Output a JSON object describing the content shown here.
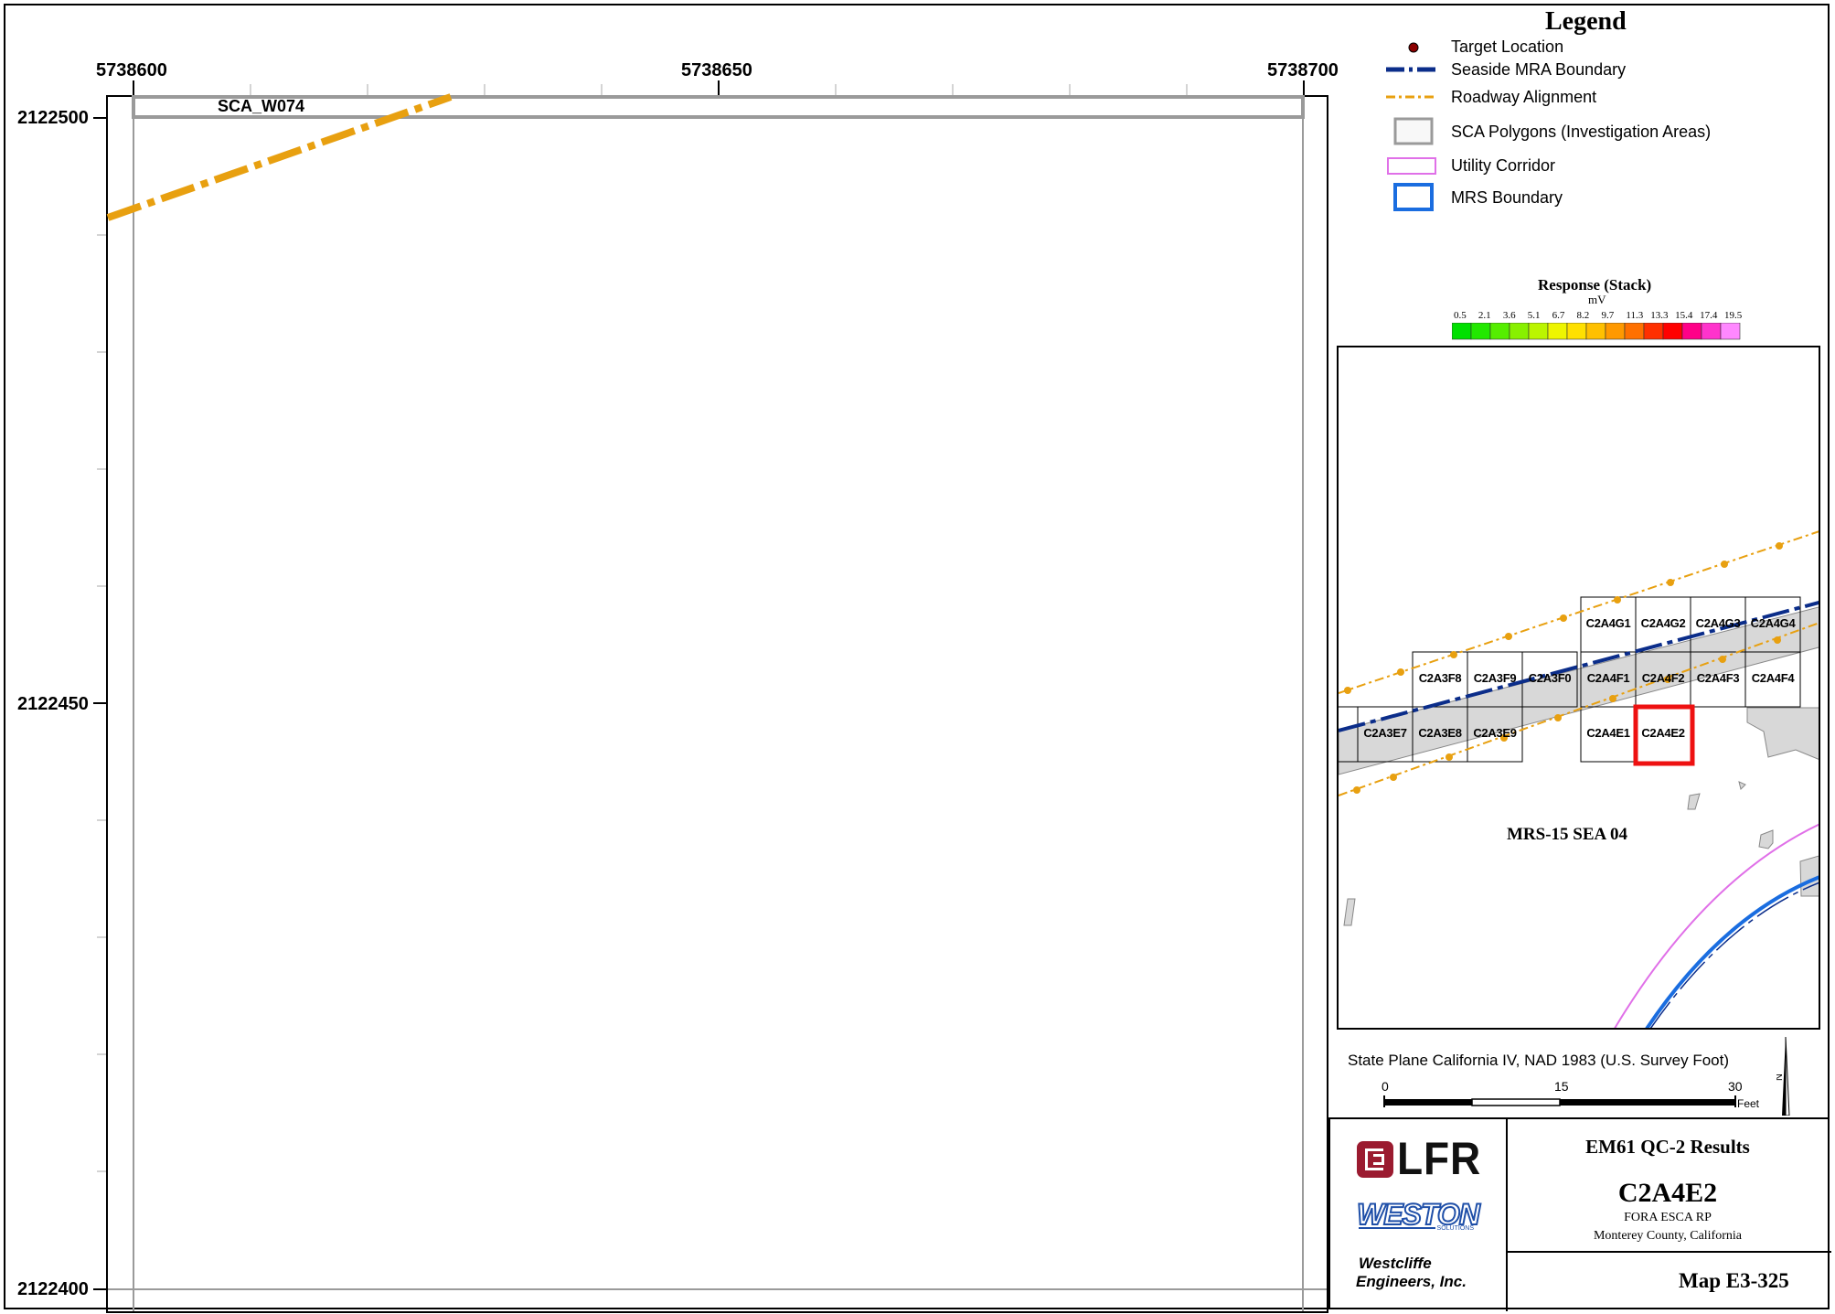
{
  "map": {
    "x_ticks": [
      "5738600",
      "5738650",
      "5738700"
    ],
    "y_ticks": [
      "2122500",
      "2122450",
      "2122400"
    ],
    "sca_label": "SCA_W074"
  },
  "legend": {
    "title": "Legend",
    "items": [
      {
        "label": "Target Location",
        "icon": "target-dot-icon"
      },
      {
        "label": "Seaside MRA Boundary",
        "icon": "dash-dot-line-icon"
      },
      {
        "label": "Roadway Alignment",
        "icon": "orange-dash-line-icon"
      },
      {
        "label": "SCA Polygons (Investigation Areas)",
        "icon": "gray-box-icon"
      },
      {
        "label": "Utility Corridor",
        "icon": "pink-box-icon"
      },
      {
        "label": "MRS Boundary",
        "icon": "blue-box-icon"
      }
    ],
    "response_title": "Response (Stack)",
    "response_unit": "mV",
    "response_ticks": [
      "0.5",
      "2.1",
      "3.6",
      "5.1",
      "6.7",
      "8.2",
      "9.7",
      "11.3",
      "13.3",
      "15.4",
      "17.4",
      "19.5"
    ],
    "response_colors": [
      "#00e000",
      "#22e800",
      "#55ee00",
      "#88f000",
      "#bbf500",
      "#eef500",
      "#ffe000",
      "#ffc000",
      "#ff9900",
      "#ff7000",
      "#ff3000",
      "#ff0000",
      "#ff0088",
      "#ff33cc",
      "#ff88ff"
    ]
  },
  "inset": {
    "grid_labels": [
      "C2A4G1",
      "C2A4G2",
      "C2A4G3",
      "C2A4G4",
      "C2A3F8",
      "C2A3F9",
      "C2A3F0",
      "C2A4F1",
      "C2A4F2",
      "C2A4F3",
      "C2A4F4",
      "C2A3E7",
      "C2A3E8",
      "C2A3E9",
      "C2A4E1",
      "C2A4E2"
    ],
    "area_label": "MRS-15 SEA 04",
    "highlight": "C2A4E2"
  },
  "projection": "State Plane California IV, NAD 1983 (U.S. Survey Foot)",
  "scalebar": {
    "ticks": [
      "0",
      "15",
      "30"
    ],
    "unit": "Feet"
  },
  "titleblock": {
    "logo_lfr": "LFR",
    "logo_weston": "WESTON",
    "logo_weston_sub": "SOLUTIONS",
    "company_line1": "Westcliffe",
    "company_line2": "Engineers, Inc.",
    "results_title": "EM61 QC-2 Results",
    "grid_id": "C2A4E2",
    "project": "FORA ESCA RP",
    "location": "Monterey County, California",
    "map_number": "Map E3-325"
  },
  "colors": {
    "roadway": "#e8a010",
    "mra_boundary": "#0b2d8a",
    "mrs_boundary": "#1a6de0",
    "utility": "#e070e8",
    "sca_gray": "#9a9a9a",
    "highlight": "#ee1111"
  }
}
